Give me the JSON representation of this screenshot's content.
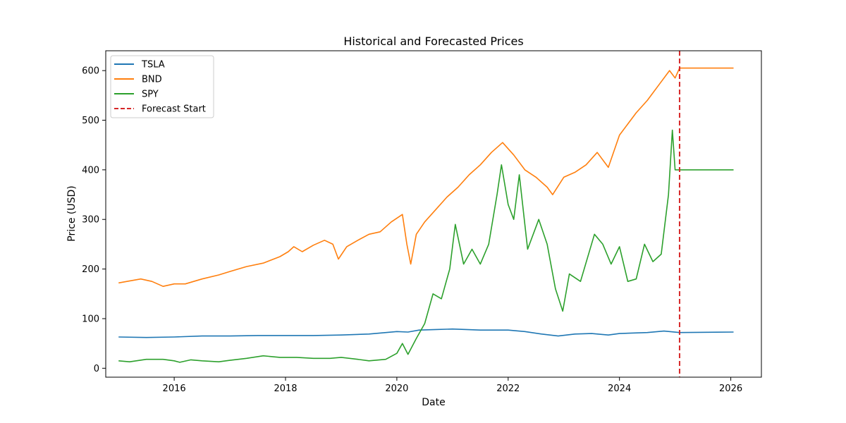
{
  "chart_data": {
    "type": "line",
    "title": "Historical and Forecasted Prices",
    "xlabel": "Date",
    "ylabel": "Price (USD)",
    "xlim": [
      2014.77,
      2026.55
    ],
    "ylim": [
      -18,
      640
    ],
    "x_ticks": [
      2016,
      2018,
      2020,
      2022,
      2024,
      2026
    ],
    "y_ticks": [
      0,
      100,
      200,
      300,
      400,
      500,
      600
    ],
    "grid": false,
    "legend_position": "top-left",
    "forecast_start": {
      "label": "Forecast Start",
      "x": 2025.08,
      "color": "#d62728"
    },
    "series": [
      {
        "name": "TSLA",
        "color": "#1f77b4",
        "points": [
          [
            2015.0,
            63
          ],
          [
            2015.5,
            62
          ],
          [
            2016.0,
            63
          ],
          [
            2016.5,
            65
          ],
          [
            2017.0,
            65
          ],
          [
            2017.5,
            66
          ],
          [
            2018.0,
            66
          ],
          [
            2018.5,
            66
          ],
          [
            2019.0,
            67
          ],
          [
            2019.5,
            69
          ],
          [
            2020.0,
            74
          ],
          [
            2020.2,
            73
          ],
          [
            2020.4,
            77
          ],
          [
            2020.7,
            78
          ],
          [
            2021.0,
            79
          ],
          [
            2021.5,
            77
          ],
          [
            2022.0,
            77
          ],
          [
            2022.3,
            74
          ],
          [
            2022.6,
            69
          ],
          [
            2022.9,
            65
          ],
          [
            2023.2,
            69
          ],
          [
            2023.5,
            70
          ],
          [
            2023.8,
            67
          ],
          [
            2024.0,
            70
          ],
          [
            2024.5,
            72
          ],
          [
            2024.8,
            75
          ],
          [
            2025.08,
            72
          ],
          [
            2026.05,
            73
          ]
        ]
      },
      {
        "name": "BND",
        "color": "#ff7f0e",
        "points": [
          [
            2015.0,
            172
          ],
          [
            2015.15,
            175
          ],
          [
            2015.4,
            180
          ],
          [
            2015.6,
            175
          ],
          [
            2015.8,
            165
          ],
          [
            2016.0,
            170
          ],
          [
            2016.2,
            170
          ],
          [
            2016.5,
            180
          ],
          [
            2016.8,
            188
          ],
          [
            2017.0,
            195
          ],
          [
            2017.3,
            205
          ],
          [
            2017.6,
            212
          ],
          [
            2017.9,
            225
          ],
          [
            2018.05,
            235
          ],
          [
            2018.15,
            245
          ],
          [
            2018.3,
            235
          ],
          [
            2018.5,
            248
          ],
          [
            2018.7,
            258
          ],
          [
            2018.85,
            250
          ],
          [
            2018.95,
            220
          ],
          [
            2019.1,
            245
          ],
          [
            2019.3,
            258
          ],
          [
            2019.5,
            270
          ],
          [
            2019.7,
            275
          ],
          [
            2019.9,
            295
          ],
          [
            2020.1,
            310
          ],
          [
            2020.18,
            250
          ],
          [
            2020.25,
            210
          ],
          [
            2020.35,
            270
          ],
          [
            2020.5,
            295
          ],
          [
            2020.7,
            320
          ],
          [
            2020.9,
            345
          ],
          [
            2021.1,
            365
          ],
          [
            2021.3,
            390
          ],
          [
            2021.5,
            410
          ],
          [
            2021.7,
            435
          ],
          [
            2021.9,
            455
          ],
          [
            2022.1,
            430
          ],
          [
            2022.3,
            400
          ],
          [
            2022.5,
            385
          ],
          [
            2022.7,
            365
          ],
          [
            2022.8,
            350
          ],
          [
            2023.0,
            385
          ],
          [
            2023.2,
            395
          ],
          [
            2023.4,
            410
          ],
          [
            2023.6,
            435
          ],
          [
            2023.8,
            405
          ],
          [
            2024.0,
            470
          ],
          [
            2024.3,
            515
          ],
          [
            2024.5,
            540
          ],
          [
            2024.7,
            570
          ],
          [
            2024.9,
            600
          ],
          [
            2025.0,
            585
          ],
          [
            2025.08,
            605
          ],
          [
            2026.05,
            605
          ]
        ]
      },
      {
        "name": "SPY",
        "color": "#2ca02c",
        "points": [
          [
            2015.0,
            15
          ],
          [
            2015.2,
            13
          ],
          [
            2015.5,
            18
          ],
          [
            2015.8,
            18
          ],
          [
            2016.0,
            15
          ],
          [
            2016.1,
            12
          ],
          [
            2016.3,
            17
          ],
          [
            2016.5,
            15
          ],
          [
            2016.8,
            13
          ],
          [
            2017.0,
            16
          ],
          [
            2017.3,
            20
          ],
          [
            2017.6,
            25
          ],
          [
            2017.9,
            22
          ],
          [
            2018.2,
            22
          ],
          [
            2018.5,
            20
          ],
          [
            2018.8,
            20
          ],
          [
            2019.0,
            22
          ],
          [
            2019.3,
            18
          ],
          [
            2019.5,
            15
          ],
          [
            2019.8,
            18
          ],
          [
            2020.0,
            30
          ],
          [
            2020.1,
            50
          ],
          [
            2020.2,
            28
          ],
          [
            2020.35,
            60
          ],
          [
            2020.5,
            90
          ],
          [
            2020.65,
            150
          ],
          [
            2020.8,
            140
          ],
          [
            2020.95,
            200
          ],
          [
            2021.05,
            290
          ],
          [
            2021.2,
            210
          ],
          [
            2021.35,
            240
          ],
          [
            2021.5,
            210
          ],
          [
            2021.65,
            250
          ],
          [
            2021.8,
            350
          ],
          [
            2021.88,
            410
          ],
          [
            2022.0,
            330
          ],
          [
            2022.1,
            300
          ],
          [
            2022.2,
            390
          ],
          [
            2022.35,
            240
          ],
          [
            2022.55,
            300
          ],
          [
            2022.7,
            250
          ],
          [
            2022.85,
            160
          ],
          [
            2022.98,
            115
          ],
          [
            2023.1,
            190
          ],
          [
            2023.3,
            175
          ],
          [
            2023.55,
            270
          ],
          [
            2023.7,
            250
          ],
          [
            2023.85,
            210
          ],
          [
            2024.0,
            245
          ],
          [
            2024.15,
            175
          ],
          [
            2024.3,
            180
          ],
          [
            2024.45,
            250
          ],
          [
            2024.6,
            215
          ],
          [
            2024.75,
            230
          ],
          [
            2024.88,
            350
          ],
          [
            2024.95,
            480
          ],
          [
            2025.0,
            400
          ],
          [
            2025.08,
            400
          ],
          [
            2026.05,
            400
          ]
        ]
      }
    ]
  }
}
